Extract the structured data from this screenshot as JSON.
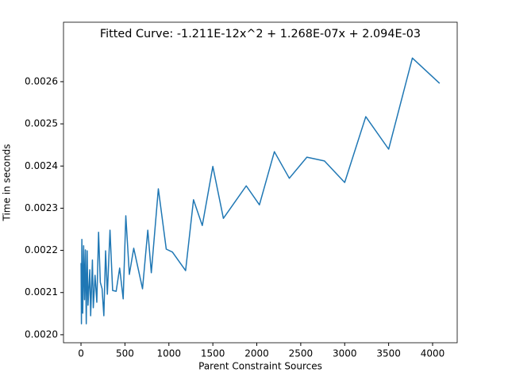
{
  "chart_data": {
    "type": "line",
    "title": "Fitted Curve: -1.211E-12x^2 + 1.268E-07x + 2.094E-03",
    "x_label": "Parent Constraint Sources",
    "y_label": "Time in seconds",
    "series": [
      {
        "color": "#1f77b4",
        "x": [
          1,
          5,
          10,
          20,
          30,
          40,
          50,
          60,
          70,
          80,
          100,
          110,
          130,
          140,
          160,
          180,
          200,
          220,
          240,
          260,
          280,
          300,
          330,
          360,
          400,
          440,
          480,
          510,
          550,
          600,
          700,
          760,
          800,
          880,
          970,
          1040,
          1190,
          1280,
          1380,
          1500,
          1620,
          1880,
          2030,
          2200,
          2370,
          2570,
          2770,
          3000,
          3240,
          3500,
          3770,
          4080
        ],
        "values": [
          0.00217,
          0.002026,
          0.002226,
          0.002051,
          0.002211,
          0.002083,
          0.002201,
          0.002026,
          0.002199,
          0.00207,
          0.002154,
          0.002045,
          0.002177,
          0.002064,
          0.002141,
          0.002077,
          0.002243,
          0.002124,
          0.002109,
          0.002045,
          0.002199,
          0.002096,
          0.002248,
          0.002105,
          0.002103,
          0.002158,
          0.002085,
          0.002282,
          0.002143,
          0.002205,
          0.002109,
          0.002248,
          0.002147,
          0.002346,
          0.002203,
          0.002196,
          0.002152,
          0.00232,
          0.002259,
          0.002399,
          0.002276,
          0.002353,
          0.002308,
          0.002434,
          0.002371,
          0.002421,
          0.002412,
          0.002361,
          0.002517,
          0.00244,
          0.002656,
          0.002596
        ]
      }
    ],
    "xlim": [
      -199,
      4280
    ],
    "ylim": [
      0.001981,
      0.002741
    ],
    "xticks": [
      0,
      500,
      1000,
      1500,
      2000,
      2500,
      3000,
      3500,
      4000
    ],
    "yticks": [
      {
        "value": 0.002,
        "label": "0.0020"
      },
      {
        "value": 0.0021,
        "label": "0.0021"
      },
      {
        "value": 0.0022,
        "label": "0.0022"
      },
      {
        "value": 0.0023,
        "label": "0.0023"
      },
      {
        "value": 0.0024,
        "label": "0.0024"
      },
      {
        "value": 0.0025,
        "label": "0.0025"
      },
      {
        "value": 0.0026,
        "label": "0.0026"
      }
    ]
  }
}
